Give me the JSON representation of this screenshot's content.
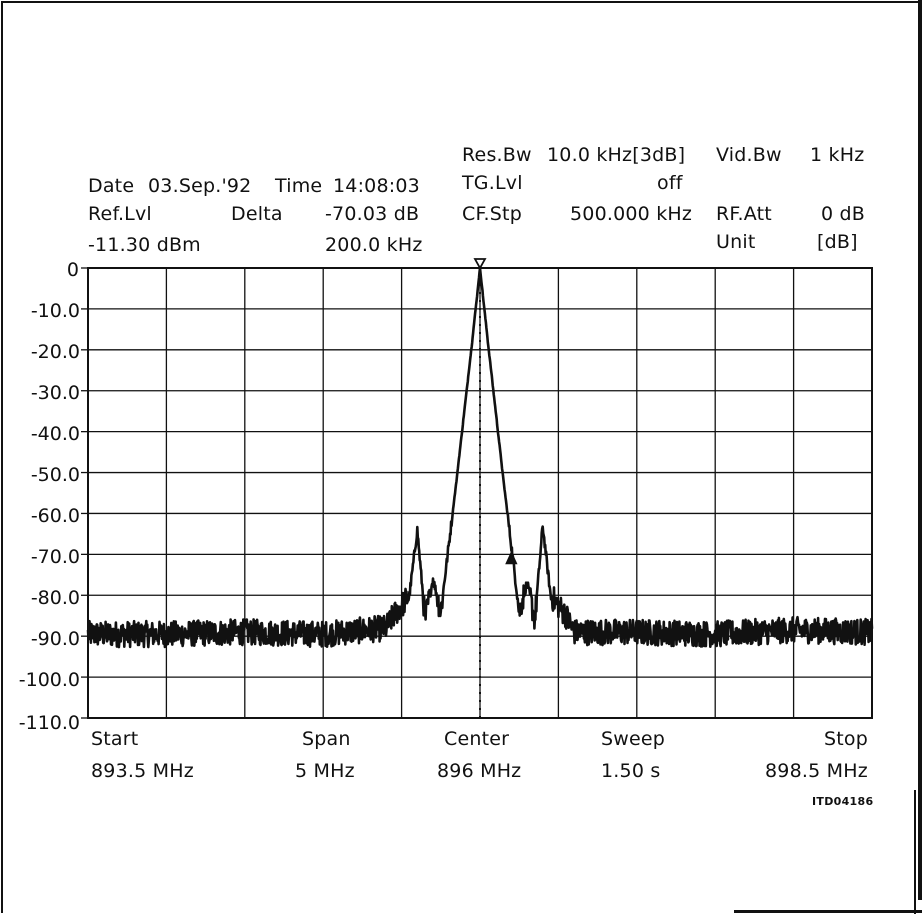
{
  "header": {
    "resbw_label": "Res.Bw",
    "resbw_value": "10.0 kHz[3dB]",
    "vidbw_label": "Vid.Bw",
    "vidbw_value": "1 kHz",
    "date_label": "Date",
    "date_value": "03.Sep.'92",
    "time_label": "Time",
    "time_value": "14:08:03",
    "tglvl_label": "TG.Lvl",
    "tglvl_value": "off",
    "reflvl_label": "Ref.Lvl",
    "delta_label": "Delta",
    "delta_value": "-70.03 dB",
    "cfstp_label": "CF.Stp",
    "cfstp_value": "500.000 kHz",
    "rfatt_label": "RF.Att",
    "rfatt_value": "0 dB",
    "reflvl_value": "-11.30 dBm",
    "delta_freq": "200.0 kHz",
    "unit_label": "Unit",
    "unit_value": "[dB]"
  },
  "footer": {
    "start_label": "Start",
    "start_value": "893.5 MHz",
    "span_label": "Span",
    "span_value": "5 MHz",
    "center_label": "Center",
    "center_value": "896 MHz",
    "sweep_label": "Sweep",
    "sweep_value": "1.50 s",
    "stop_label": "Stop",
    "stop_value": "898.5 MHz",
    "figure_code": "ITD04186"
  },
  "chart_data": {
    "type": "line",
    "title": "",
    "xlabel": "",
    "ylabel": "",
    "xlim": [
      893.5,
      898.5
    ],
    "ylim": [
      -110,
      0
    ],
    "grid": true,
    "y_ticks": [
      "0",
      "-10.0",
      "-20.0",
      "-30.0",
      "-40.0",
      "-50.0",
      "-60.0",
      "-70.0",
      "-80.0",
      "-90.0",
      "-100.0",
      "-110.0"
    ],
    "y_tick_values": [
      0,
      -10,
      -20,
      -30,
      -40,
      -50,
      -60,
      -70,
      -80,
      -90,
      -100,
      -110
    ],
    "x_divisions": 10,
    "series": [
      {
        "x": [
          893.5,
          894.0,
          894.5,
          895.0,
          895.4,
          895.45,
          895.55,
          895.6,
          895.65,
          895.7,
          895.75,
          895.8,
          895.85,
          895.9,
          895.95,
          896.0,
          896.05,
          896.1,
          896.15,
          896.2,
          896.25,
          896.3,
          896.35,
          896.4,
          896.45,
          896.55,
          896.6,
          897.0,
          897.5,
          898.0,
          898.5
        ],
        "y": [
          -89.5,
          -89.5,
          -89.0,
          -89.5,
          -88.0,
          -85.0,
          -80.0,
          -64.0,
          -86.0,
          -76.0,
          -84.0,
          -68.0,
          -52.0,
          -35.0,
          -18.0,
          0.0,
          -18.0,
          -35.0,
          -52.0,
          -68.0,
          -84.0,
          -77.0,
          -86.0,
          -63.0,
          -80.0,
          -85.0,
          -89.0,
          -89.0,
          -89.5,
          -88.5,
          -89.0
        ]
      }
    ],
    "markers": [
      {
        "x": 896.0,
        "y": 0.0,
        "type": "reference"
      },
      {
        "x": 896.2,
        "y": -70.03,
        "type": "delta"
      }
    ],
    "center_line_x": 896.0
  }
}
